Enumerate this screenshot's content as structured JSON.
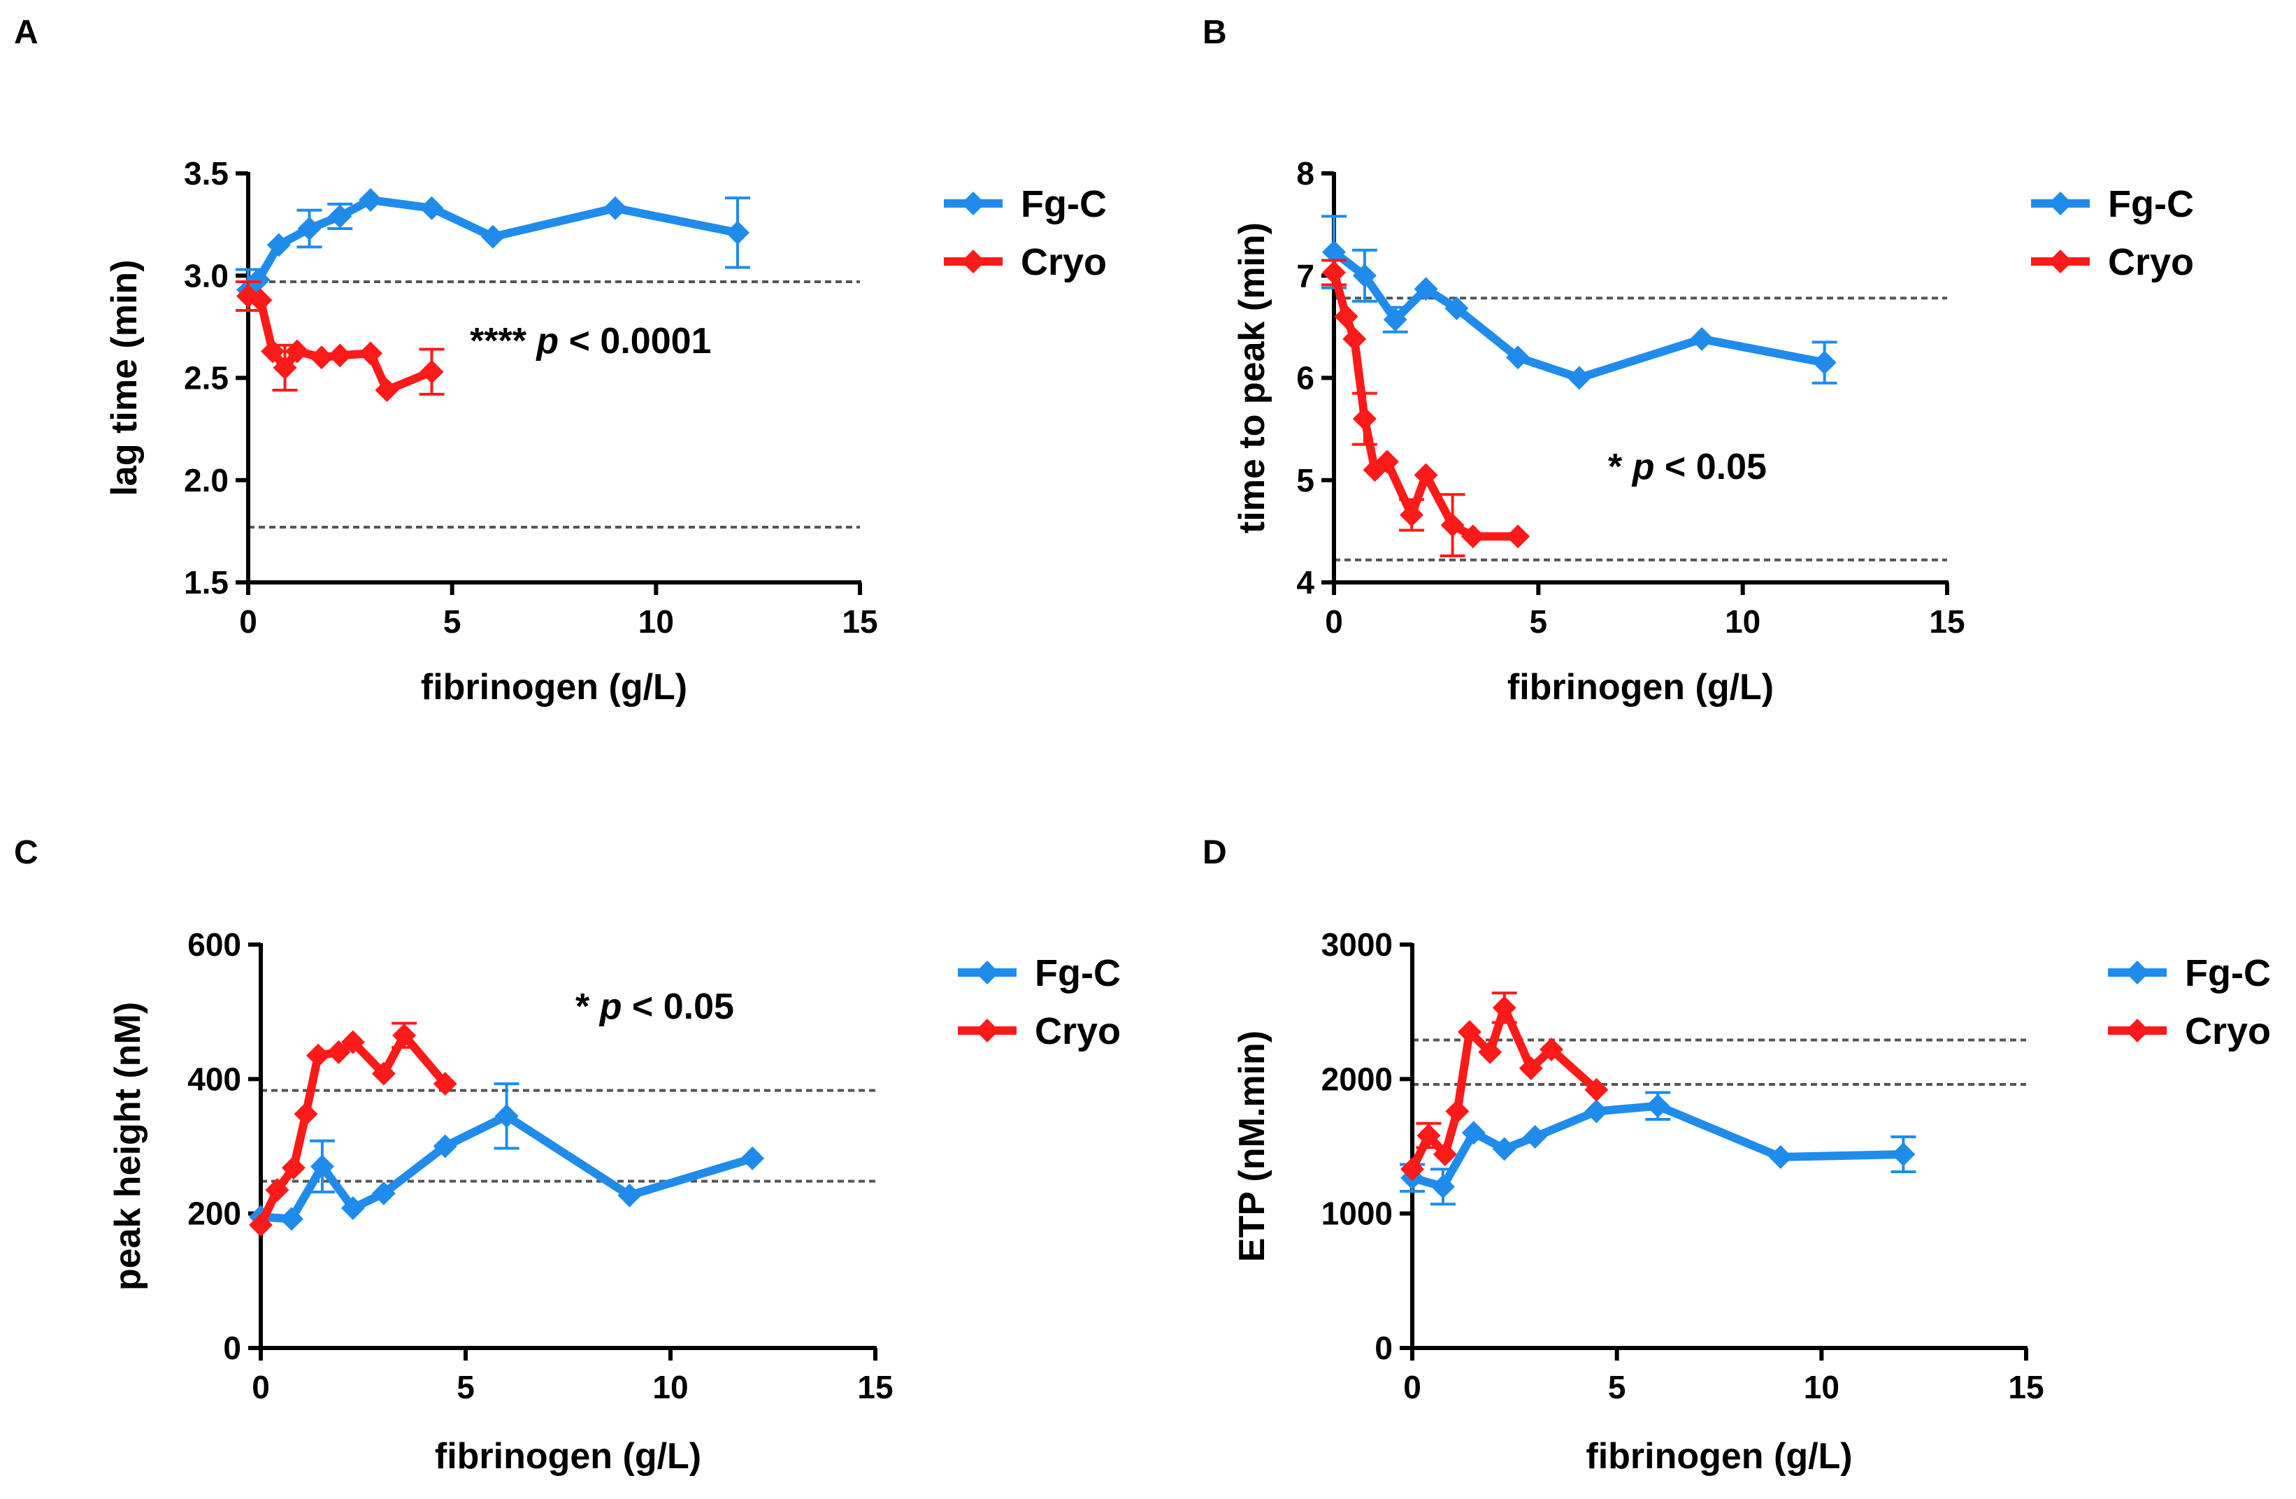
{
  "colors": {
    "fgc": "#1f8ceb",
    "cryo": "#ff1a1a",
    "axis": "#000000",
    "reference": "#555555"
  },
  "chart_data": [
    {
      "panel": "A",
      "type": "line",
      "xlabel": "fibrinogen (g/L)",
      "ylabel": "lag time (min)",
      "xlim": [
        0,
        15
      ],
      "ylim": [
        1.5,
        3.5
      ],
      "xticks": [
        0,
        5,
        10,
        15
      ],
      "yticks": [
        1.5,
        2.0,
        2.5,
        3.0,
        3.5
      ],
      "ytick_labels": [
        "1.5",
        "2.0",
        "2.5",
        "3.0",
        "3.5"
      ],
      "reference_lines": [
        2.97,
        1.77
      ],
      "annotation": {
        "stars": "****",
        "p": "p",
        "text": "< 0.0001"
      },
      "legend_position": "top-right",
      "series": [
        {
          "name": "Fg-C",
          "color_key": "fgc",
          "x": [
            0,
            0.25,
            0.75,
            1.5,
            2.25,
            3,
            4.5,
            6,
            9,
            12
          ],
          "y": [
            2.93,
            2.98,
            3.15,
            3.23,
            3.29,
            3.37,
            3.33,
            3.19,
            3.33,
            3.21
          ],
          "err": [
            0.1,
            0,
            0,
            0.09,
            0.06,
            0,
            0,
            0,
            0,
            0.17
          ]
        },
        {
          "name": "Cryo",
          "color_key": "cryo",
          "x": [
            0,
            0.3,
            0.6,
            0.9,
            1.2,
            1.8,
            2.25,
            3,
            3.4,
            4.5
          ],
          "y": [
            2.9,
            2.88,
            2.63,
            2.55,
            2.63,
            2.6,
            2.61,
            2.62,
            2.44,
            2.53
          ],
          "err": [
            0.07,
            0,
            0,
            0.11,
            0,
            0,
            0,
            0,
            0,
            0.11
          ]
        }
      ]
    },
    {
      "panel": "B",
      "type": "line",
      "xlabel": "fibrinogen (g/L)",
      "ylabel": "time to peak (min)",
      "xlim": [
        0,
        15
      ],
      "ylim": [
        4,
        8
      ],
      "xticks": [
        0,
        5,
        10,
        15
      ],
      "yticks": [
        4,
        5,
        6,
        7,
        8
      ],
      "ytick_labels": [
        "4",
        "5",
        "6",
        "7",
        "8"
      ],
      "reference_lines": [
        6.78,
        4.22
      ],
      "annotation": {
        "stars": "*",
        "p": "p",
        "text": "< 0.05"
      },
      "legend_position": "top-right",
      "series": [
        {
          "name": "Fg-C",
          "color_key": "fgc",
          "x": [
            0,
            0.75,
            1.5,
            2.25,
            3,
            4.5,
            6,
            9,
            12
          ],
          "y": [
            7.23,
            7.0,
            6.57,
            6.87,
            6.68,
            6.2,
            6.0,
            6.38,
            6.15
          ],
          "err": [
            0.35,
            0.25,
            0.12,
            0,
            0,
            0,
            0,
            0,
            0.2
          ]
        },
        {
          "name": "Cryo",
          "color_key": "cryo",
          "x": [
            0,
            0.3,
            0.5,
            0.75,
            1.0,
            1.3,
            1.9,
            2.25,
            2.9,
            3.4,
            4.5
          ],
          "y": [
            7.03,
            6.6,
            6.38,
            5.6,
            5.1,
            5.18,
            4.66,
            5.05,
            4.56,
            4.45,
            4.45
          ],
          "err": [
            0.12,
            0,
            0,
            0.25,
            0,
            0,
            0.15,
            0,
            0.3,
            0,
            0
          ]
        }
      ]
    },
    {
      "panel": "C",
      "type": "line",
      "xlabel": "fibrinogen (g/L)",
      "ylabel": "peak height (nM)",
      "xlim": [
        0,
        15
      ],
      "ylim": [
        0,
        600
      ],
      "xticks": [
        0,
        5,
        10,
        15
      ],
      "yticks": [
        0,
        200,
        400,
        600
      ],
      "ytick_labels": [
        "0",
        "200",
        "400",
        "600"
      ],
      "reference_lines": [
        383,
        248
      ],
      "annotation": {
        "stars": "*",
        "p": "p",
        "text": "< 0.05"
      },
      "legend_position": "top-right",
      "series": [
        {
          "name": "Fg-C",
          "color_key": "fgc",
          "x": [
            0,
            0.75,
            1.5,
            2.25,
            3,
            4.5,
            6,
            9,
            12
          ],
          "y": [
            195,
            192,
            270,
            208,
            230,
            300,
            345,
            227,
            282
          ],
          "err": [
            0,
            0,
            38,
            0,
            0,
            0,
            48,
            0,
            0
          ]
        },
        {
          "name": "Cryo",
          "color_key": "cryo",
          "x": [
            0,
            0.4,
            0.8,
            1.1,
            1.4,
            1.9,
            2.25,
            3,
            3.5,
            4.5
          ],
          "y": [
            183,
            235,
            268,
            348,
            435,
            440,
            455,
            408,
            465,
            393
          ],
          "err": [
            0,
            0,
            0,
            0,
            0,
            0,
            0,
            0,
            18,
            0
          ]
        }
      ]
    },
    {
      "panel": "D",
      "type": "line",
      "xlabel": "fibrinogen (g/L)",
      "ylabel": "ETP (nM.min)",
      "xlim": [
        0,
        15
      ],
      "ylim": [
        0,
        3000
      ],
      "xticks": [
        0,
        5,
        10,
        15
      ],
      "yticks": [
        0,
        1000,
        2000,
        3000
      ],
      "ytick_labels": [
        "0",
        "1000",
        "2000",
        "3000"
      ],
      "reference_lines": [
        2290,
        1960
      ],
      "annotation": null,
      "legend_position": "top-right",
      "series": [
        {
          "name": "Fg-C",
          "color_key": "fgc",
          "x": [
            0,
            0.75,
            1.5,
            2.25,
            3,
            4.5,
            6,
            9,
            12
          ],
          "y": [
            1265,
            1200,
            1600,
            1480,
            1570,
            1760,
            1800,
            1420,
            1440
          ],
          "err": [
            100,
            130,
            0,
            0,
            0,
            0,
            100,
            0,
            130
          ]
        },
        {
          "name": "Cryo",
          "color_key": "cryo",
          "x": [
            0,
            0.4,
            0.8,
            1.1,
            1.4,
            1.9,
            2.25,
            2.9,
            3.4,
            4.5
          ],
          "y": [
            1330,
            1580,
            1440,
            1760,
            2350,
            2200,
            2530,
            2080,
            2220,
            1920
          ],
          "err": [
            0,
            90,
            0,
            0,
            0,
            0,
            110,
            0,
            0,
            0
          ]
        }
      ]
    }
  ]
}
